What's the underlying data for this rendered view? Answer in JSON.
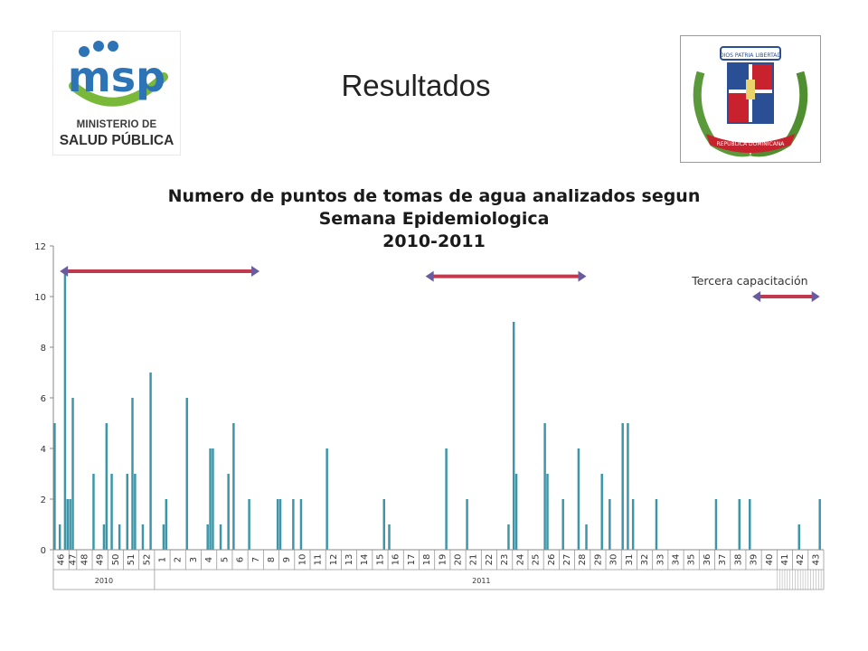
{
  "slide": {
    "title": "Resultados",
    "logo_text_line1": "MINISTERIO DE",
    "logo_text_line2": "SALUD PÚBLICA",
    "logo_mark_text": "msp",
    "seal_motto": "DIOS  PATRIA  LIBERTAD",
    "seal_banner": "REPÚBLICA DOMINICANA"
  },
  "colors": {
    "bar": "#3c96a8",
    "arrow": "#c0394c",
    "arrow_head": "#6a5a9e",
    "logo_blue": "#2c74b5",
    "logo_green": "#7ab83a"
  },
  "chart_data": {
    "type": "bar",
    "title": [
      "Numero de puntos de tomas de agua analizados segun",
      "Semana Epidemiologica",
      "2010-2011"
    ],
    "ylim": [
      0,
      12
    ],
    "yticks": [
      "0",
      "2",
      "4",
      "6",
      "8",
      "10",
      "12"
    ],
    "year_labels": [
      {
        "label": "2010",
        "start": 0,
        "end": 7
      },
      {
        "label": "2011",
        "start": 7,
        "end": 49
      }
    ],
    "week_labels": [
      "46",
      "47",
      "48",
      "49",
      "50",
      "51",
      "52",
      "1",
      "2",
      "3",
      "4",
      "5",
      "6",
      "7",
      "8",
      "9",
      "10",
      "11",
      "12",
      "13",
      "14",
      "15",
      "16",
      "17",
      "18",
      "19",
      "20",
      "21",
      "22",
      "23",
      "24",
      "25",
      "26",
      "27",
      "28",
      "29",
      "30",
      "31",
      "32",
      "33",
      "34",
      "35",
      "36",
      "37",
      "38",
      "39",
      "40",
      "41",
      "42",
      "43"
    ],
    "values": [
      {
        "week": "46",
        "sub": [
          5,
          0,
          1,
          0,
          11,
          2
        ]
      },
      {
        "week": "47",
        "sub": [
          2,
          6,
          0
        ]
      },
      {
        "week": "48",
        "sub": [
          0,
          0,
          0,
          0,
          0,
          0
        ]
      },
      {
        "week": "49",
        "sub": [
          3,
          0,
          0,
          0,
          1,
          5
        ]
      },
      {
        "week": "50",
        "sub": [
          0,
          3,
          0,
          0,
          1,
          0
        ]
      },
      {
        "week": "51",
        "sub": [
          0,
          3,
          0,
          6,
          3,
          0
        ]
      },
      {
        "week": "52",
        "sub": [
          0,
          1,
          0,
          0,
          7,
          0
        ]
      },
      {
        "week": "1",
        "sub": [
          0,
          0,
          0,
          1,
          2,
          0
        ]
      },
      {
        "week": "2",
        "sub": [
          0,
          0,
          0,
          0,
          0,
          0
        ]
      },
      {
        "week": "3",
        "sub": [
          6,
          0,
          0,
          0,
          0,
          0
        ]
      },
      {
        "week": "4",
        "sub": [
          0,
          0,
          1,
          4,
          4,
          0
        ]
      },
      {
        "week": "5",
        "sub": [
          0,
          1,
          0,
          0,
          3,
          0
        ]
      },
      {
        "week": "6",
        "sub": [
          5,
          0,
          0,
          0,
          0,
          0
        ]
      },
      {
        "week": "7",
        "sub": [
          2,
          0,
          0,
          0,
          0,
          0
        ]
      },
      {
        "week": "8",
        "sub": [
          0,
          0,
          0,
          0,
          0,
          2
        ]
      },
      {
        "week": "9",
        "sub": [
          2,
          0,
          0,
          0,
          0,
          2
        ]
      },
      {
        "week": "10",
        "sub": [
          0,
          0,
          2,
          0,
          0,
          0
        ]
      },
      {
        "week": "11",
        "sub": [
          0,
          0,
          0,
          0,
          0,
          0
        ]
      },
      {
        "week": "12",
        "sub": [
          4,
          0,
          0,
          0,
          0,
          0
        ]
      },
      {
        "week": "13",
        "sub": [
          0,
          0,
          0,
          0,
          0,
          0
        ]
      },
      {
        "week": "14",
        "sub": [
          0,
          0,
          0,
          0,
          0,
          0
        ]
      },
      {
        "week": "15",
        "sub": [
          0,
          0,
          0,
          0,
          2,
          0
        ]
      },
      {
        "week": "16",
        "sub": [
          1,
          0,
          0,
          0,
          0,
          0
        ]
      },
      {
        "week": "17",
        "sub": [
          0,
          0,
          0,
          0,
          0,
          0
        ]
      },
      {
        "week": "18",
        "sub": [
          0,
          0,
          0,
          0,
          0,
          0
        ]
      },
      {
        "week": "19",
        "sub": [
          0,
          0,
          0,
          0,
          4,
          0
        ]
      },
      {
        "week": "20",
        "sub": [
          0,
          0,
          0,
          0,
          0,
          0
        ]
      },
      {
        "week": "21",
        "sub": [
          2,
          0,
          0,
          0,
          0,
          0
        ]
      },
      {
        "week": "22",
        "sub": [
          0,
          0,
          0,
          0,
          0,
          0
        ]
      },
      {
        "week": "23",
        "sub": [
          0,
          0,
          0,
          0,
          1,
          0
        ]
      },
      {
        "week": "24",
        "sub": [
          9,
          3,
          0,
          0,
          0,
          0
        ]
      },
      {
        "week": "25",
        "sub": [
          0,
          0,
          0,
          0,
          0,
          0
        ]
      },
      {
        "week": "26",
        "sub": [
          5,
          3,
          0,
          0,
          0,
          0
        ]
      },
      {
        "week": "27",
        "sub": [
          0,
          2,
          0,
          0,
          0,
          0
        ]
      },
      {
        "week": "28",
        "sub": [
          0,
          4,
          0,
          0,
          1,
          0
        ]
      },
      {
        "week": "29",
        "sub": [
          0,
          0,
          0,
          0,
          3,
          0
        ]
      },
      {
        "week": "30",
        "sub": [
          0,
          2,
          0,
          0,
          0,
          0
        ]
      },
      {
        "week": "31",
        "sub": [
          5,
          0,
          5,
          0,
          2,
          0
        ]
      },
      {
        "week": "32",
        "sub": [
          0,
          0,
          0,
          0,
          0,
          0
        ]
      },
      {
        "week": "33",
        "sub": [
          0,
          2,
          0,
          0,
          0,
          0
        ]
      },
      {
        "week": "34",
        "sub": [
          0,
          0,
          0,
          0,
          0,
          0
        ]
      },
      {
        "week": "35",
        "sub": [
          0,
          0,
          0,
          0,
          0,
          0
        ]
      },
      {
        "week": "36",
        "sub": [
          0,
          0,
          0,
          0,
          0,
          0
        ]
      },
      {
        "week": "37",
        "sub": [
          2,
          0,
          0,
          0,
          0,
          0
        ]
      },
      {
        "week": "38",
        "sub": [
          0,
          0,
          0,
          2,
          0,
          0
        ]
      },
      {
        "week": "39",
        "sub": [
          0,
          2,
          0,
          0,
          0,
          0
        ]
      },
      {
        "week": "40",
        "sub": [
          0,
          0,
          0,
          0,
          0,
          0
        ]
      },
      {
        "week": "41",
        "sub": [
          0,
          0,
          0,
          0,
          0,
          0
        ]
      },
      {
        "week": "42",
        "sub": [
          0,
          0,
          1,
          0,
          0,
          0
        ]
      },
      {
        "week": "43",
        "sub": [
          0,
          0,
          0,
          0,
          2,
          0
        ]
      }
    ],
    "annotations": [
      {
        "type": "arrow",
        "label": "",
        "from_week": "46",
        "to_week": "7",
        "y": 11
      },
      {
        "type": "arrow",
        "label": "",
        "from_week": "18",
        "to_week": "28",
        "y": 10.8
      },
      {
        "type": "arrow",
        "label": "Tercera capacitación",
        "from_week": "39",
        "to_week": "43",
        "y": 10
      }
    ],
    "grid": false,
    "legend": "none"
  }
}
